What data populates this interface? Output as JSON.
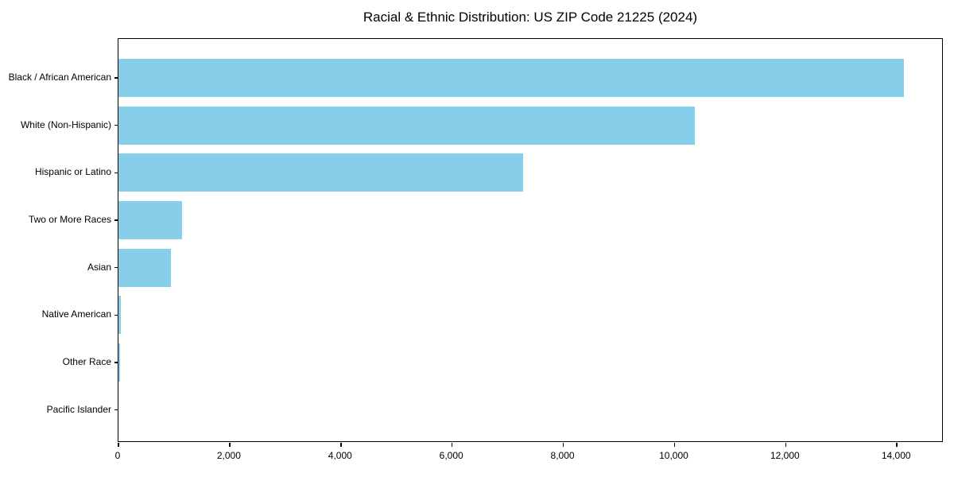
{
  "chart_data": {
    "type": "bar",
    "orientation": "horizontal",
    "title": "Racial & Ethnic Distribution: US ZIP Code 21225 (2024)",
    "categories": [
      "Black / African American",
      "White (Non-Hispanic)",
      "Hispanic or Latino",
      "Two or More Races",
      "Asian",
      "Native American",
      "Other Race",
      "Pacific Islander"
    ],
    "values": [
      14130,
      10360,
      7270,
      1150,
      950,
      50,
      30,
      0
    ],
    "xlabel": "",
    "ylabel": "",
    "xlim": [
      0,
      14840
    ],
    "x_ticks": [
      0,
      2000,
      4000,
      6000,
      8000,
      10000,
      12000,
      14000
    ],
    "x_tick_labels": [
      "0",
      "2,000",
      "4,000",
      "6,000",
      "8,000",
      "10,000",
      "12,000",
      "14,000"
    ],
    "bar_color": "#87CEEB",
    "axis_color": "#000000",
    "text_color": "#000000",
    "background_color": "#ffffff",
    "grid": false,
    "legend": null
  }
}
